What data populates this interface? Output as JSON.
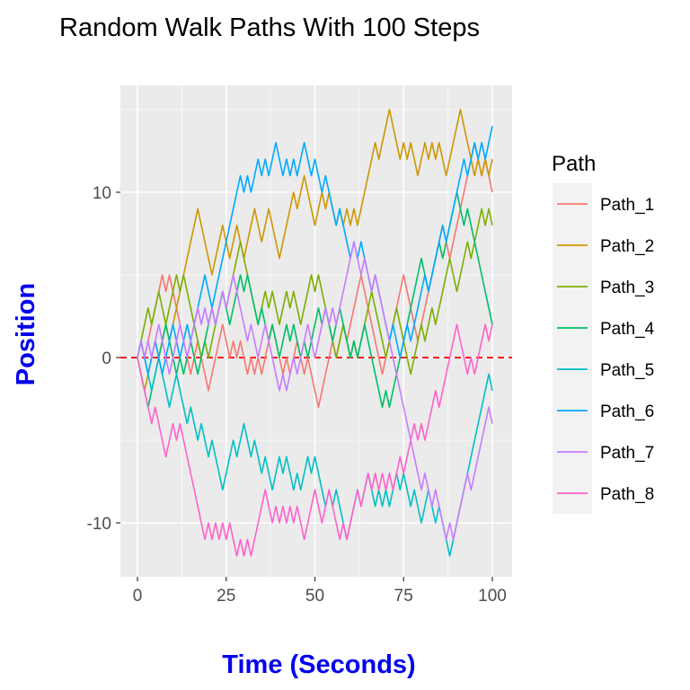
{
  "chart_data": {
    "type": "line",
    "title": "Random Walk Paths With 100 Steps",
    "xlabel": "Time (Seconds)",
    "ylabel": "Position",
    "xlim": [
      0,
      100
    ],
    "ylim": [
      -13,
      16
    ],
    "x_ticks": [
      0,
      25,
      50,
      75,
      100
    ],
    "y_ticks": [
      -10,
      0,
      10
    ],
    "grid": true,
    "reference_line": {
      "y": 0,
      "color": "#ff0000",
      "style": "dashed"
    },
    "legend": {
      "title": "Path",
      "position": "right"
    },
    "series": [
      {
        "name": "Path_1",
        "color": "#f8766d",
        "values": [
          0,
          1,
          0,
          1,
          2,
          3,
          4,
          5,
          4,
          5,
          4,
          3,
          2,
          1,
          0,
          -1,
          0,
          1,
          0,
          -1,
          -2,
          -1,
          0,
          1,
          2,
          1,
          0,
          1,
          0,
          1,
          0,
          -1,
          0,
          -1,
          0,
          -1,
          0,
          1,
          2,
          1,
          0,
          -1,
          0,
          -1,
          0,
          1,
          0,
          -1,
          0,
          -1,
          -2,
          -3,
          -2,
          -1,
          0,
          1,
          0,
          1,
          2,
          1,
          2,
          3,
          4,
          5,
          4,
          3,
          2,
          1,
          0,
          -1,
          0,
          1,
          2,
          3,
          4,
          5,
          4,
          3,
          2,
          1,
          2,
          3,
          4,
          5,
          6,
          7,
          8,
          7,
          6,
          7,
          8,
          9,
          10,
          11,
          12,
          13,
          12,
          11,
          12,
          11,
          10
        ]
      },
      {
        "name": "Path_2",
        "color": "#cd9600",
        "values": [
          0,
          -1,
          -2,
          -1,
          0,
          1,
          0,
          1,
          2,
          1,
          2,
          3,
          4,
          5,
          6,
          7,
          8,
          9,
          8,
          7,
          6,
          5,
          6,
          7,
          8,
          7,
          6,
          7,
          8,
          7,
          6,
          7,
          8,
          9,
          8,
          7,
          8,
          9,
          8,
          7,
          6,
          7,
          8,
          9,
          10,
          9,
          10,
          11,
          10,
          9,
          8,
          9,
          10,
          9,
          10,
          9,
          8,
          9,
          8,
          9,
          8,
          9,
          8,
          9,
          10,
          11,
          12,
          13,
          12,
          13,
          14,
          15,
          14,
          13,
          12,
          13,
          12,
          13,
          12,
          11,
          12,
          13,
          12,
          13,
          12,
          13,
          12,
          11,
          12,
          13,
          14,
          15,
          14,
          13,
          12,
          11,
          12,
          11,
          12,
          11,
          12
        ]
      },
      {
        "name": "Path_3",
        "color": "#7cae00",
        "values": [
          0,
          1,
          2,
          3,
          2,
          3,
          4,
          3,
          2,
          3,
          4,
          5,
          4,
          5,
          4,
          3,
          2,
          1,
          0,
          1,
          0,
          1,
          2,
          3,
          4,
          3,
          4,
          5,
          6,
          7,
          6,
          5,
          4,
          3,
          2,
          3,
          4,
          3,
          4,
          3,
          2,
          3,
          4,
          3,
          4,
          3,
          2,
          3,
          4,
          5,
          4,
          5,
          4,
          3,
          2,
          1,
          0,
          1,
          2,
          1,
          0,
          1,
          0,
          1,
          2,
          3,
          4,
          3,
          2,
          1,
          0,
          1,
          2,
          3,
          2,
          1,
          0,
          -1,
          0,
          1,
          2,
          1,
          2,
          3,
          2,
          3,
          4,
          5,
          6,
          5,
          4,
          5,
          6,
          7,
          6,
          7,
          8,
          9,
          8,
          9,
          8
        ]
      },
      {
        "name": "Path_4",
        "color": "#00be67",
        "values": [
          0,
          -1,
          -2,
          -3,
          -2,
          -1,
          0,
          1,
          2,
          1,
          0,
          -1,
          0,
          -1,
          0,
          1,
          0,
          -1,
          0,
          1,
          2,
          3,
          2,
          3,
          4,
          3,
          2,
          3,
          4,
          5,
          4,
          5,
          4,
          3,
          2,
          3,
          2,
          1,
          2,
          1,
          0,
          1,
          2,
          1,
          2,
          1,
          0,
          1,
          0,
          1,
          2,
          3,
          2,
          3,
          2,
          1,
          2,
          3,
          2,
          1,
          0,
          1,
          0,
          1,
          2,
          1,
          0,
          -1,
          -2,
          -3,
          -2,
          -3,
          -2,
          -1,
          0,
          1,
          2,
          3,
          4,
          5,
          6,
          5,
          4,
          5,
          6,
          7,
          6,
          7,
          8,
          9,
          10,
          9,
          8,
          9,
          8,
          7,
          6,
          5,
          4,
          3,
          2
        ]
      },
      {
        "name": "Path_5",
        "color": "#00bfc4",
        "values": [
          0,
          1,
          0,
          -1,
          -2,
          -1,
          0,
          -1,
          -2,
          -3,
          -2,
          -1,
          -2,
          -3,
          -4,
          -3,
          -4,
          -5,
          -4,
          -5,
          -6,
          -5,
          -6,
          -7,
          -8,
          -7,
          -6,
          -5,
          -6,
          -5,
          -4,
          -5,
          -6,
          -5,
          -6,
          -7,
          -6,
          -7,
          -8,
          -7,
          -6,
          -7,
          -6,
          -7,
          -8,
          -7,
          -8,
          -7,
          -6,
          -7,
          -6,
          -7,
          -8,
          -9,
          -8,
          -9,
          -8,
          -9,
          -10,
          -11,
          -10,
          -9,
          -8,
          -9,
          -8,
          -7,
          -8,
          -9,
          -8,
          -9,
          -8,
          -9,
          -8,
          -7,
          -8,
          -7,
          -8,
          -9,
          -8,
          -9,
          -10,
          -9,
          -8,
          -9,
          -10,
          -9,
          -10,
          -11,
          -12,
          -11,
          -10,
          -9,
          -8,
          -7,
          -6,
          -5,
          -4,
          -3,
          -2,
          -1,
          -2
        ]
      },
      {
        "name": "Path_6",
        "color": "#00a9ff",
        "values": [
          0,
          1,
          0,
          -1,
          0,
          1,
          0,
          -1,
          0,
          1,
          2,
          1,
          0,
          1,
          2,
          1,
          2,
          3,
          4,
          5,
          4,
          3,
          4,
          5,
          6,
          7,
          8,
          9,
          10,
          11,
          10,
          11,
          10,
          11,
          12,
          11,
          12,
          11,
          12,
          13,
          12,
          11,
          12,
          11,
          12,
          11,
          12,
          13,
          12,
          11,
          12,
          11,
          10,
          11,
          10,
          9,
          8,
          9,
          8,
          7,
          6,
          7,
          6,
          7,
          6,
          5,
          4,
          5,
          4,
          3,
          2,
          1,
          2,
          1,
          0,
          1,
          2,
          1,
          2,
          3,
          4,
          5,
          4,
          5,
          6,
          7,
          8,
          7,
          8,
          9,
          10,
          11,
          12,
          11,
          12,
          13,
          12,
          13,
          12,
          13,
          14
        ]
      },
      {
        "name": "Path_7",
        "color": "#c77cff",
        "values": [
          0,
          1,
          0,
          1,
          0,
          1,
          2,
          1,
          0,
          -1,
          0,
          1,
          2,
          1,
          0,
          1,
          2,
          3,
          2,
          3,
          2,
          3,
          2,
          3,
          4,
          3,
          4,
          5,
          4,
          3,
          2,
          1,
          2,
          1,
          0,
          1,
          2,
          1,
          0,
          -1,
          -2,
          -1,
          -2,
          -1,
          0,
          -1,
          0,
          1,
          2,
          1,
          0,
          1,
          2,
          3,
          2,
          3,
          2,
          3,
          4,
          5,
          6,
          7,
          6,
          5,
          6,
          5,
          4,
          5,
          4,
          3,
          2,
          1,
          0,
          -1,
          -2,
          -3,
          -4,
          -5,
          -6,
          -7,
          -8,
          -7,
          -8,
          -9,
          -8,
          -9,
          -10,
          -11,
          -10,
          -11,
          -10,
          -9,
          -8,
          -7,
          -8,
          -7,
          -6,
          -5,
          -4,
          -3,
          -4
        ]
      },
      {
        "name": "Path_8",
        "color": "#ff61cc",
        "values": [
          0,
          -1,
          -2,
          -3,
          -4,
          -3,
          -4,
          -5,
          -6,
          -5,
          -4,
          -5,
          -4,
          -5,
          -6,
          -7,
          -8,
          -9,
          -10,
          -11,
          -10,
          -11,
          -10,
          -11,
          -10,
          -11,
          -10,
          -11,
          -12,
          -11,
          -12,
          -11,
          -12,
          -11,
          -10,
          -9,
          -8,
          -9,
          -10,
          -9,
          -10,
          -9,
          -10,
          -9,
          -10,
          -9,
          -10,
          -11,
          -10,
          -9,
          -8,
          -9,
          -10,
          -9,
          -8,
          -9,
          -10,
          -11,
          -10,
          -11,
          -10,
          -9,
          -8,
          -9,
          -8,
          -7,
          -8,
          -7,
          -8,
          -7,
          -8,
          -7,
          -8,
          -7,
          -6,
          -7,
          -6,
          -5,
          -4,
          -5,
          -4,
          -5,
          -4,
          -3,
          -2,
          -3,
          -2,
          -1,
          0,
          1,
          2,
          1,
          0,
          -1,
          0,
          -1,
          0,
          1,
          2,
          1,
          2
        ]
      }
    ]
  }
}
